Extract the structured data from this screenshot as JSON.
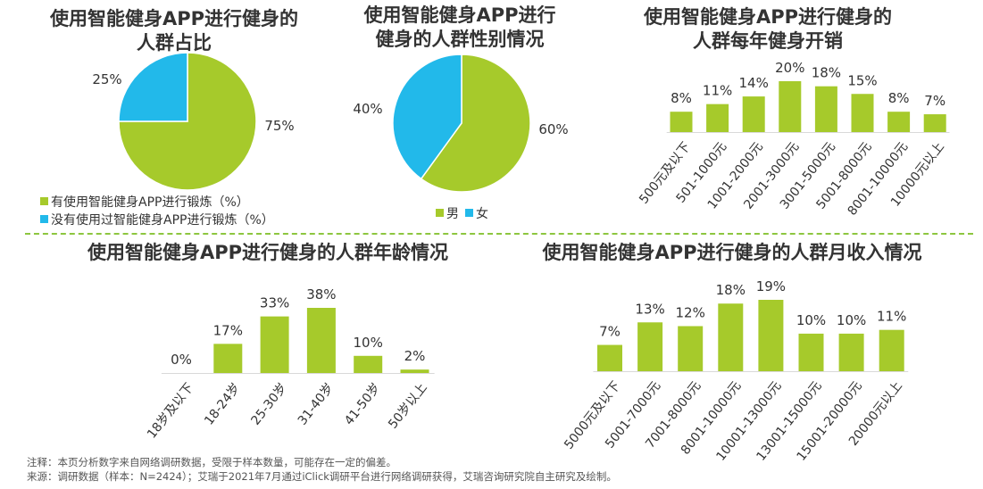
{
  "colors": {
    "green": "#a6ca2b",
    "blue": "#22b9ea"
  },
  "charts": [
    {
      "title_line1": "使用智能健身APP进行健身的",
      "title_line2": "人群占比",
      "chart_data": {
        "type": "pie",
        "slices": [
          {
            "label": "有使用智能健身APP进行锻炼（%）",
            "value": 75,
            "display": "75%",
            "color": "#a6ca2b"
          },
          {
            "label": "没有使用过智能健身APP进行锻炼（%）",
            "value": 25,
            "display": "25%",
            "color": "#22b9ea"
          }
        ]
      }
    },
    {
      "title_line1": "使用智能健身APP进行",
      "title_line2": "健身的人群性别情况",
      "chart_data": {
        "type": "pie",
        "slices": [
          {
            "label": "男",
            "value": 60,
            "display": "60%",
            "color": "#a6ca2b"
          },
          {
            "label": "女",
            "value": 40,
            "display": "40%",
            "color": "#22b9ea"
          }
        ]
      }
    },
    {
      "title_line1": "使用智能健身APP进行健身的",
      "title_line2": "人群每年健身开销",
      "chart_data": {
        "type": "bar",
        "categories": [
          "500元及以下",
          "501-1000元",
          "1001-2000元",
          "2001-3000元",
          "3001-5000元",
          "5001-8000元",
          "8001-10000元",
          "10000元以上"
        ],
        "values": [
          8,
          11,
          14,
          20,
          18,
          15,
          8,
          7
        ],
        "labels": [
          "8%",
          "11%",
          "14%",
          "20%",
          "18%",
          "15%",
          "8%",
          "7%"
        ],
        "unit": "%",
        "ylim": [
          0,
          20
        ]
      }
    },
    {
      "title_line1": "使用智能健身APP进行健身的人群年龄情况",
      "chart_data": {
        "type": "bar",
        "categories": [
          "18岁及以下",
          "18-24岁",
          "25-30岁",
          "31-40岁",
          "41-50岁",
          "50岁以上"
        ],
        "values": [
          0,
          17,
          33,
          38,
          10,
          2
        ],
        "labels": [
          "0%",
          "17%",
          "33%",
          "38%",
          "10%",
          "2%"
        ],
        "unit": "%",
        "ylim": [
          0,
          38
        ]
      }
    },
    {
      "title_line1": "使用智能健身APP进行健身的人群月收入情况",
      "chart_data": {
        "type": "bar",
        "categories": [
          "5000元及以下",
          "5001-7000元",
          "7001-8000元",
          "8001-10000元",
          "10001-13000元",
          "13001-15000元",
          "15001-20000元",
          "20000元以上"
        ],
        "values": [
          7,
          13,
          12,
          18,
          19,
          10,
          10,
          11
        ],
        "labels": [
          "7%",
          "13%",
          "12%",
          "18%",
          "19%",
          "10%",
          "10%",
          "11%"
        ],
        "unit": "%",
        "ylim": [
          0,
          19
        ]
      }
    }
  ],
  "notes": {
    "line1": "注释：本页分析数字来自网络调研数据，受限于样本数量，可能存在一定的偏差。",
    "line2": "来源：调研数据（样本：N=2424）；艾瑞于2021年7月通过iClick调研平台进行网络调研获得，艾瑞咨询研究院自主研究及绘制。"
  }
}
